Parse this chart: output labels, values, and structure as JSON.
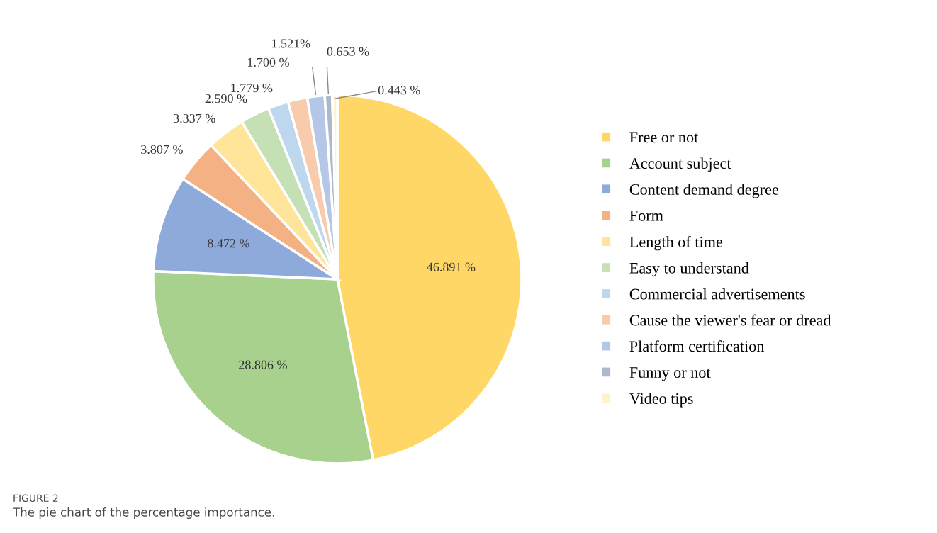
{
  "chart_data": {
    "type": "pie",
    "categories": [
      "Free or not",
      "Account subject",
      "Content demand degree",
      "Form",
      "Length of time",
      "Easy to understand",
      "Commercial advertisements",
      "Cause the viewer's fear or dread",
      "Platform certification",
      "Funny or not",
      "Video tips"
    ],
    "values": [
      46.891,
      28.806,
      8.472,
      3.807,
      3.337,
      2.59,
      1.779,
      1.7,
      1.521,
      0.653,
      0.443
    ],
    "colors": [
      "#fed766",
      "#a9d18e",
      "#8eaadb",
      "#f4b183",
      "#fee599",
      "#c5e0b4",
      "#bdd7ee",
      "#f8cbad",
      "#b4c7e7",
      "#adb9ca",
      "#fff2cc"
    ],
    "value_labels": [
      "46.891 %",
      "28.806 %",
      "8.472 %",
      "3.807 %",
      "3.337 %",
      "2.590 %",
      "1.779 %",
      "1.700 %",
      "1.521%",
      "0.653 %",
      "0.443 %"
    ],
    "legend": "right",
    "annotations": [
      "FIGURE 2",
      "The pie chart of the percentage importance."
    ]
  }
}
